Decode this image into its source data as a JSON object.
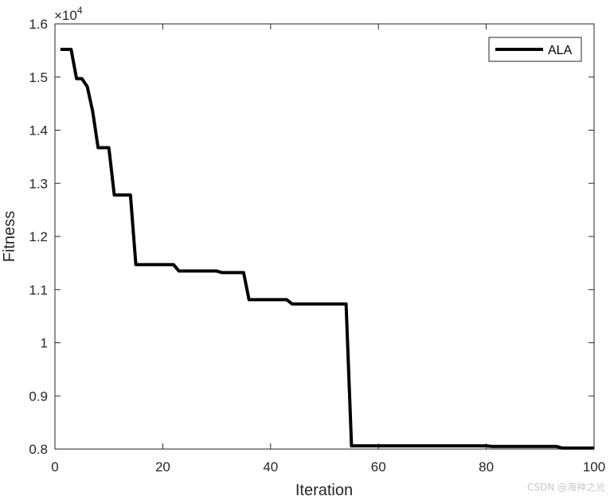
{
  "chart_data": {
    "type": "line",
    "xlabel": "Iteration",
    "ylabel": "Fitness",
    "xlim": [
      0,
      100
    ],
    "ylim": [
      8000,
      16000
    ],
    "x_ticks": [
      "0",
      "20",
      "40",
      "60",
      "80",
      "100"
    ],
    "y_ticks": [
      "0.8",
      "0.9",
      "1",
      "1.1",
      "1.2",
      "1.3",
      "1.4",
      "1.5",
      "1.6"
    ],
    "y_exponent_label": "×10",
    "y_exponent_power": "4",
    "legend_position": "top-right",
    "grid": false,
    "series": [
      {
        "name": "ALA",
        "color": "#000000",
        "points": [
          [
            1,
            15520
          ],
          [
            3,
            15520
          ],
          [
            4,
            14970
          ],
          [
            5,
            14970
          ],
          [
            6,
            14820
          ],
          [
            7,
            14350
          ],
          [
            8,
            13670
          ],
          [
            10,
            13670
          ],
          [
            11,
            12780
          ],
          [
            14,
            12780
          ],
          [
            15,
            11470
          ],
          [
            22,
            11470
          ],
          [
            23,
            11350
          ],
          [
            30,
            11350
          ],
          [
            31,
            11320
          ],
          [
            35,
            11320
          ],
          [
            36,
            10810
          ],
          [
            43,
            10810
          ],
          [
            44,
            10730
          ],
          [
            54,
            10730
          ],
          [
            55,
            8060
          ],
          [
            80,
            8060
          ],
          [
            81,
            8050
          ],
          [
            93,
            8050
          ],
          [
            94,
            8020
          ],
          [
            100,
            8020
          ]
        ]
      }
    ]
  },
  "watermark": "CSDN @海神之光"
}
